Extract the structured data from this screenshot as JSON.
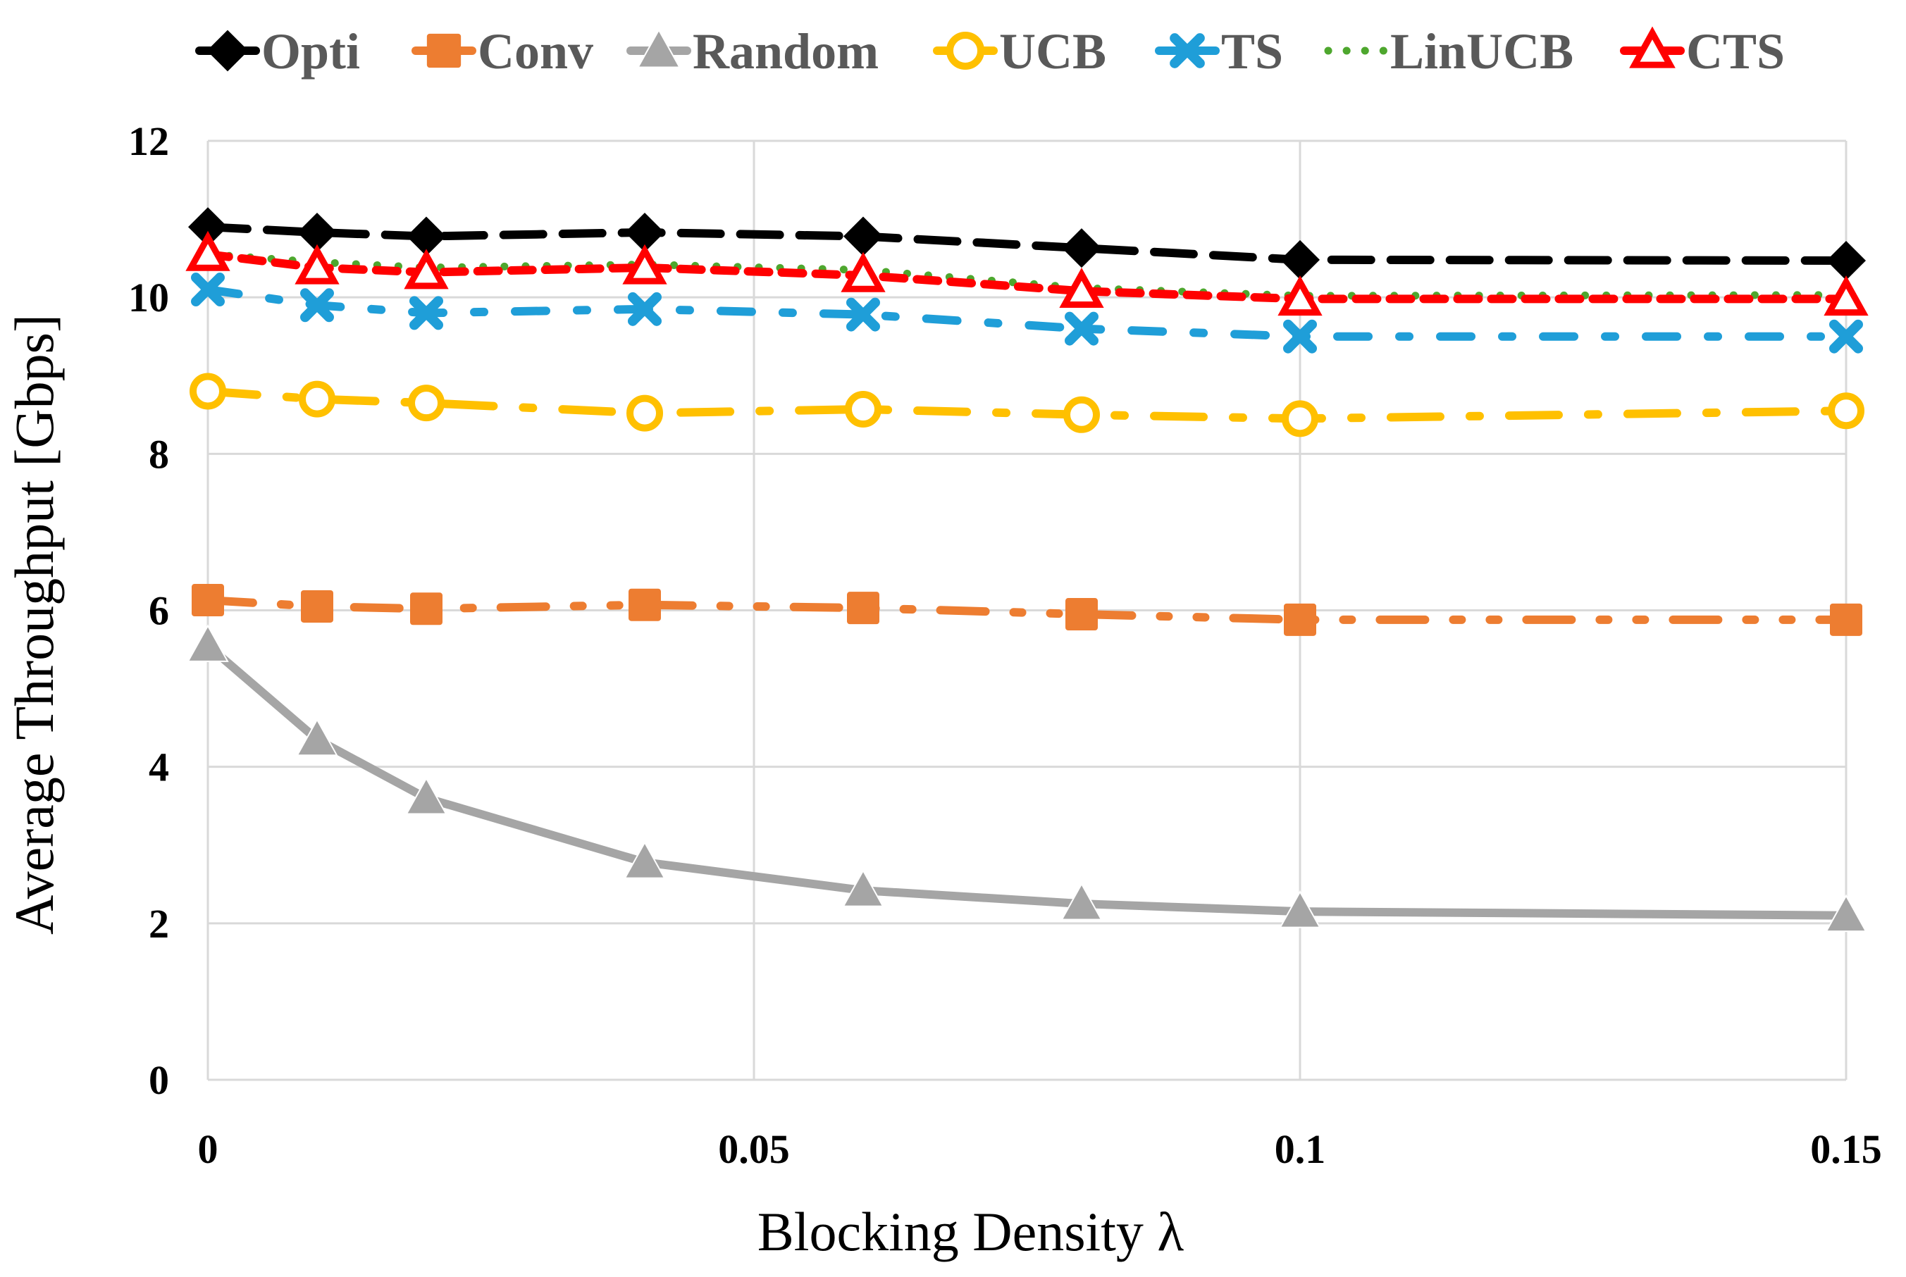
{
  "chart_data": {
    "type": "line",
    "title": "",
    "xlabel": "Blocking Density  λ",
    "ylabel": "Average Throughput [Gbps]",
    "xlim": [
      0,
      0.15
    ],
    "ylim": [
      0,
      12
    ],
    "x_ticks": [
      0,
      0.05,
      0.1,
      0.15
    ],
    "x_tick_labels": [
      "0",
      "0.05",
      "0.1",
      "0.15"
    ],
    "y_ticks": [
      0,
      2,
      4,
      6,
      8,
      10,
      12
    ],
    "y_tick_labels": [
      "0",
      "2",
      "4",
      "6",
      "8",
      "10",
      "12"
    ],
    "grid": true,
    "legend_position": "top",
    "x": [
      0,
      0.01,
      0.02,
      0.04,
      0.06,
      0.08,
      0.1,
      0.15
    ],
    "series": [
      {
        "name": "Opti",
        "color": "#000000",
        "marker": "diamond",
        "line": "long-dash",
        "values": [
          10.9,
          10.83,
          10.78,
          10.83,
          10.78,
          10.63,
          10.48,
          10.47
        ]
      },
      {
        "name": "Conv",
        "color": "#ED7D31",
        "marker": "square",
        "line": "long-dash-dot-dot",
        "values": [
          6.13,
          6.05,
          6.02,
          6.07,
          6.03,
          5.95,
          5.88,
          5.88
        ]
      },
      {
        "name": "Random",
        "color": "#A5A5A5",
        "marker": "triangle",
        "line": "solid",
        "values": [
          5.55,
          4.35,
          3.6,
          2.78,
          2.42,
          2.25,
          2.15,
          2.1
        ]
      },
      {
        "name": "UCB",
        "color": "#FFC000",
        "marker": "circle",
        "line": "long-dash-dot",
        "values": [
          8.8,
          8.7,
          8.65,
          8.52,
          8.57,
          8.5,
          8.45,
          8.55
        ]
      },
      {
        "name": "TS",
        "color": "#1F9ED8",
        "marker": "x",
        "line": "dash-dot",
        "values": [
          10.1,
          9.9,
          9.8,
          9.85,
          9.78,
          9.6,
          9.5,
          9.5
        ]
      },
      {
        "name": "LinUCB",
        "color": "#4EA72E",
        "marker": "none",
        "line": "dotted",
        "values": [
          10.55,
          10.45,
          10.38,
          10.42,
          10.35,
          10.12,
          10.02,
          10.03
        ]
      },
      {
        "name": "CTS",
        "color": "#FF0000",
        "marker": "triangle-open",
        "line": "dash",
        "values": [
          10.55,
          10.38,
          10.32,
          10.38,
          10.28,
          10.08,
          9.98,
          9.98
        ]
      }
    ]
  }
}
